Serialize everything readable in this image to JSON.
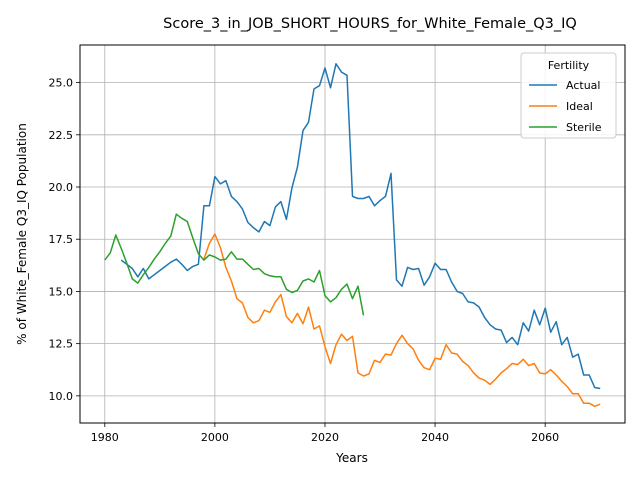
{
  "chart_data": {
    "type": "line",
    "title": "Score_3_in_JOB_SHORT_HOURS_for_White_Female_Q3_IQ",
    "xlabel": "Years",
    "ylabel": "% of White_Female Q3_IQ Population",
    "xlim": [
      1975.5,
      2074.5
    ],
    "ylim": [
      8.7,
      26.8
    ],
    "xticks": [
      1980,
      2000,
      2020,
      2040,
      2060
    ],
    "yticks": [
      10.0,
      12.5,
      15.0,
      17.5,
      20.0,
      22.5,
      25.0
    ],
    "ytick_labels": [
      "10.0",
      "12.5",
      "15.0",
      "17.5",
      "20.0",
      "22.5",
      "25.0"
    ],
    "grid": true,
    "legend": {
      "title": "Fertility",
      "position": "top-right"
    },
    "series": [
      {
        "name": "Actual",
        "color": "#1f77b4",
        "x": [
          1983,
          1984,
          1985,
          1986,
          1987,
          1988,
          1989,
          1990,
          1991,
          1992,
          1993,
          1994,
          1995,
          1996,
          1997,
          1998,
          1999,
          2000,
          2001,
          2002,
          2003,
          2004,
          2005,
          2006,
          2007,
          2008,
          2009,
          2010,
          2011,
          2012,
          2013,
          2014,
          2015,
          2016,
          2017,
          2018,
          2019,
          2020,
          2021,
          2022,
          2023,
          2024,
          2025,
          2026,
          2027,
          2028,
          2029,
          2030,
          2031,
          2032,
          2033,
          2034,
          2035,
          2036,
          2037,
          2038,
          2039,
          2040,
          2041,
          2042,
          2043,
          2044,
          2045,
          2046,
          2047,
          2048,
          2049,
          2050,
          2051,
          2052,
          2053,
          2054,
          2055,
          2056,
          2057,
          2058,
          2059,
          2060,
          2061,
          2062,
          2063,
          2064,
          2065,
          2066,
          2067,
          2068,
          2069,
          2070
        ],
        "values": [
          16.5,
          16.3,
          16.1,
          15.7,
          16.1,
          15.6,
          15.8,
          16.0,
          16.2,
          16.4,
          16.55,
          16.3,
          16.0,
          16.2,
          16.3,
          19.1,
          19.1,
          20.5,
          20.15,
          20.3,
          19.55,
          19.3,
          18.95,
          18.3,
          18.05,
          17.85,
          18.35,
          18.15,
          19.05,
          19.3,
          18.45,
          19.95,
          20.95,
          22.7,
          23.1,
          24.7,
          24.85,
          25.7,
          24.75,
          25.9,
          25.5,
          25.35,
          19.55,
          19.45,
          19.45,
          19.55,
          19.1,
          19.35,
          19.55,
          20.65,
          15.55,
          15.25,
          16.15,
          16.05,
          16.1,
          15.3,
          15.7,
          16.35,
          16.05,
          16.05,
          15.45,
          15.0,
          14.9,
          14.5,
          14.45,
          14.25,
          13.75,
          13.4,
          13.2,
          13.15,
          12.55,
          12.8,
          12.45,
          13.5,
          13.1,
          14.1,
          13.4,
          14.2,
          13.05,
          13.55,
          12.45,
          12.8,
          11.85,
          12.0,
          11.0,
          11.0,
          10.4,
          10.35
        ]
      },
      {
        "name": "Ideal",
        "color": "#ff7f0e",
        "x": [
          1998,
          1999,
          2000,
          2001,
          2002,
          2003,
          2004,
          2005,
          2006,
          2007,
          2008,
          2009,
          2010,
          2011,
          2012,
          2013,
          2014,
          2015,
          2016,
          2017,
          2018,
          2019,
          2020,
          2021,
          2022,
          2023,
          2024,
          2025,
          2026,
          2027,
          2028,
          2029,
          2030,
          2031,
          2032,
          2033,
          2034,
          2035,
          2036,
          2037,
          2038,
          2039,
          2040,
          2041,
          2042,
          2043,
          2044,
          2045,
          2046,
          2047,
          2048,
          2049,
          2050,
          2051,
          2052,
          2053,
          2054,
          2055,
          2056,
          2057,
          2058,
          2059,
          2060,
          2061,
          2062,
          2063,
          2064,
          2065,
          2066,
          2067,
          2068,
          2069,
          2070
        ],
        "values": [
          16.55,
          17.3,
          17.75,
          17.1,
          16.15,
          15.5,
          14.65,
          14.45,
          13.75,
          13.5,
          13.6,
          14.1,
          14.0,
          14.5,
          14.85,
          13.8,
          13.5,
          13.95,
          13.45,
          14.25,
          13.2,
          13.35,
          12.35,
          11.55,
          12.45,
          12.95,
          12.65,
          12.85,
          11.1,
          10.95,
          11.05,
          11.7,
          11.6,
          12.0,
          11.95,
          12.5,
          12.9,
          12.5,
          12.25,
          11.7,
          11.35,
          11.25,
          11.8,
          11.75,
          12.45,
          12.05,
          12.0,
          11.65,
          11.45,
          11.1,
          10.85,
          10.75,
          10.55,
          10.8,
          11.1,
          11.3,
          11.55,
          11.5,
          11.75,
          11.45,
          11.55,
          11.1,
          11.05,
          11.25,
          11.0,
          10.7,
          10.45,
          10.1,
          10.1,
          9.65,
          9.65,
          9.5,
          9.6
        ]
      },
      {
        "name": "Sterile",
        "color": "#2ca02c",
        "x": [
          1980,
          1981,
          1982,
          1983,
          1984,
          1985,
          1986,
          1987,
          1988,
          1989,
          1990,
          1991,
          1992,
          1993,
          1994,
          1995,
          1996,
          1997,
          1998,
          1999,
          2000,
          2001,
          2002,
          2003,
          2004,
          2005,
          2006,
          2007,
          2008,
          2009,
          2010,
          2011,
          2012,
          2013,
          2014,
          2015,
          2016,
          2017,
          2018,
          2019,
          2020,
          2021,
          2022,
          2023,
          2024,
          2025,
          2026,
          2027
        ],
        "values": [
          16.5,
          16.85,
          17.7,
          17.05,
          16.35,
          15.6,
          15.4,
          15.8,
          16.15,
          16.55,
          16.9,
          17.3,
          17.65,
          18.7,
          18.5,
          18.35,
          17.55,
          16.8,
          16.5,
          16.75,
          16.65,
          16.5,
          16.55,
          16.9,
          16.55,
          16.55,
          16.3,
          16.05,
          16.1,
          15.85,
          15.75,
          15.7,
          15.7,
          15.1,
          14.95,
          15.05,
          15.5,
          15.6,
          15.45,
          16.0,
          14.8,
          14.5,
          14.7,
          15.1,
          15.35,
          14.65,
          15.25,
          13.85
        ]
      }
    ]
  }
}
